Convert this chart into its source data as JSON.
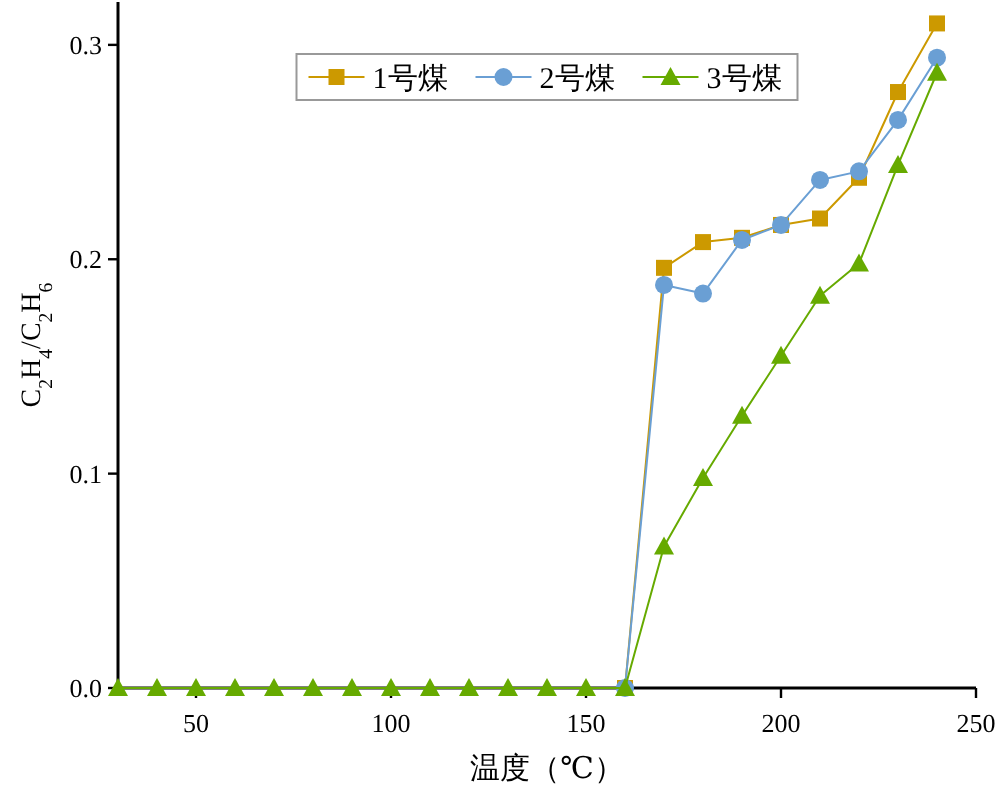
{
  "chart_data": {
    "type": "line",
    "xlabel": "温度（℃）",
    "ylabel": "C$_{2}$H$_{4}$/C$_{2}$H$_{6}$",
    "x": [
      30,
      40,
      50,
      60,
      70,
      80,
      90,
      100,
      110,
      120,
      130,
      140,
      150,
      160,
      170,
      180,
      190,
      200,
      210,
      220,
      230,
      240
    ],
    "series": [
      {
        "name": "1号煤",
        "color": "#cc9900",
        "marker": "square",
        "values": [
          null,
          null,
          null,
          null,
          null,
          null,
          null,
          null,
          null,
          null,
          null,
          null,
          null,
          0,
          0.196,
          0.208,
          0.21,
          0.216,
          0.219,
          0.238,
          0.278,
          0.31
        ]
      },
      {
        "name": "2号煤",
        "color": "#6a9fd4",
        "marker": "circle",
        "values": [
          null,
          null,
          null,
          null,
          null,
          null,
          null,
          null,
          null,
          null,
          null,
          null,
          null,
          0,
          0.188,
          0.184,
          0.209,
          0.216,
          0.237,
          0.241,
          0.265,
          0.294
        ]
      },
      {
        "name": "3号煤",
        "color": "#66aa00",
        "marker": "triangle",
        "values": [
          0,
          0,
          0,
          0,
          0,
          0,
          0,
          0,
          0,
          0,
          0,
          0,
          0,
          0,
          0.066,
          0.098,
          0.127,
          0.155,
          0.183,
          0.198,
          0.244,
          0.287
        ]
      }
    ],
    "xlim": [
      30,
      250
    ],
    "xticks": [
      50,
      100,
      150,
      200,
      250
    ],
    "ylim": [
      0,
      0.32
    ],
    "yticks": [
      {
        "value": 0,
        "label": "0.0"
      },
      0.1,
      0.2,
      0.3
    ],
    "grid": false,
    "legend": "top",
    "line_style": "solid"
  }
}
